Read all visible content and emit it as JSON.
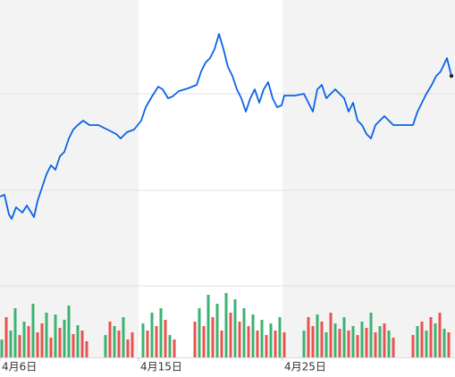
{
  "chart_data": {
    "type": "line",
    "color": "#0a63e6",
    "xlim": [
      0,
      509
    ],
    "ylim": [
      0,
      320
    ],
    "xticks": [
      {
        "value": 0,
        "label": "4月6日"
      },
      {
        "value": 155,
        "label": "4月15日"
      },
      {
        "value": 316,
        "label": "4月25日"
      }
    ],
    "x": [
      0,
      5,
      10,
      13,
      18,
      25,
      30,
      38,
      42,
      47,
      52,
      57,
      62,
      67,
      72,
      77,
      82,
      87,
      93,
      100,
      110,
      120,
      130,
      135,
      142,
      150,
      158,
      163,
      170,
      177,
      182,
      188,
      193,
      200,
      210,
      220,
      225,
      230,
      235,
      240,
      245,
      250,
      255,
      260,
      265,
      270,
      275,
      280,
      285,
      290,
      295,
      300,
      305,
      310,
      315,
      318,
      330,
      340,
      345,
      350,
      355,
      360,
      365,
      370,
      375,
      380,
      385,
      390,
      395,
      400,
      405,
      410,
      415,
      420,
      425,
      430,
      435,
      440,
      450,
      462,
      467,
      472,
      477,
      483,
      488,
      493,
      500,
      505
    ],
    "values": [
      100,
      102,
      80,
      75,
      88,
      82,
      90,
      77,
      95,
      110,
      125,
      135,
      130,
      145,
      150,
      165,
      175,
      180,
      185,
      180,
      180,
      175,
      170,
      165,
      172,
      175,
      185,
      200,
      212,
      223,
      220,
      210,
      212,
      218,
      221,
      225,
      240,
      250,
      255,
      265,
      282,
      265,
      245,
      235,
      220,
      210,
      195,
      210,
      220,
      205,
      220,
      228,
      210,
      200,
      202,
      213,
      213,
      215,
      205,
      195,
      220,
      225,
      210,
      215,
      220,
      215,
      210,
      195,
      205,
      185,
      180,
      170,
      165,
      180,
      185,
      190,
      185,
      180,
      180,
      180,
      195,
      205,
      215,
      225,
      235,
      240,
      255,
      235
    ],
    "volume": {
      "ylim": [
        0,
        80
      ],
      "x": [
        2,
        7,
        12,
        17,
        22,
        27,
        32,
        37,
        42,
        47,
        52,
        57,
        62,
        67,
        72,
        77,
        82,
        87,
        92,
        97,
        118,
        123,
        128,
        133,
        138,
        143,
        148,
        160,
        165,
        170,
        175,
        180,
        185,
        190,
        195,
        218,
        223,
        228,
        233,
        238,
        243,
        248,
        253,
        258,
        263,
        268,
        273,
        278,
        283,
        288,
        293,
        298,
        303,
        308,
        313,
        318,
        340,
        345,
        350,
        355,
        360,
        365,
        370,
        375,
        380,
        385,
        390,
        395,
        400,
        405,
        410,
        415,
        420,
        425,
        430,
        435,
        440,
        462,
        467,
        472,
        477,
        482,
        487,
        492,
        497,
        502
      ],
      "values": [
        20,
        45,
        30,
        55,
        25,
        40,
        35,
        60,
        28,
        38,
        50,
        22,
        48,
        33,
        42,
        58,
        26,
        36,
        30,
        18,
        25,
        40,
        35,
        30,
        45,
        20,
        28,
        38,
        30,
        50,
        35,
        55,
        42,
        25,
        20,
        40,
        55,
        35,
        70,
        45,
        60,
        30,
        72,
        50,
        65,
        40,
        55,
        35,
        48,
        30,
        42,
        25,
        38,
        30,
        45,
        28,
        30,
        45,
        35,
        48,
        40,
        28,
        50,
        38,
        32,
        45,
        30,
        35,
        25,
        40,
        33,
        50,
        28,
        35,
        38,
        30,
        22,
        25,
        35,
        40,
        30,
        45,
        38,
        50,
        32,
        28
      ],
      "colors": [
        "#3cb371",
        "#e8534f",
        "#3cb371",
        "#3cb371",
        "#e8534f",
        "#3cb371",
        "#e8534f",
        "#3cb371",
        "#e8534f",
        "#e8534f",
        "#3cb371",
        "#e8534f",
        "#3cb371",
        "#e8534f",
        "#3cb371",
        "#3cb371",
        "#e8534f",
        "#3cb371",
        "#e8534f",
        "#e8534f",
        "#3cb371",
        "#e8534f",
        "#3cb371",
        "#e8534f",
        "#3cb371",
        "#e8534f",
        "#e8534f",
        "#3cb371",
        "#e8534f",
        "#3cb371",
        "#e8534f",
        "#3cb371",
        "#e8534f",
        "#3cb371",
        "#e8534f",
        "#e8534f",
        "#3cb371",
        "#e8534f",
        "#3cb371",
        "#e8534f",
        "#3cb371",
        "#e8534f",
        "#3cb371",
        "#e8534f",
        "#3cb371",
        "#e8534f",
        "#3cb371",
        "#e8534f",
        "#3cb371",
        "#e8534f",
        "#3cb371",
        "#e8534f",
        "#3cb371",
        "#e8534f",
        "#3cb371",
        "#e8534f",
        "#3cb371",
        "#e8534f",
        "#e8534f",
        "#3cb371",
        "#e8534f",
        "#3cb371",
        "#e8534f",
        "#3cb371",
        "#e8534f",
        "#3cb371",
        "#e8534f",
        "#3cb371",
        "#e8534f",
        "#3cb371",
        "#e8534f",
        "#3cb371",
        "#e8534f",
        "#3cb371",
        "#e8534f",
        "#3cb371",
        "#e8534f",
        "#e8534f",
        "#3cb371",
        "#e8534f",
        "#3cb371",
        "#e8534f",
        "#3cb371",
        "#e8534f",
        "#3cb371",
        "#e8534f"
      ]
    }
  }
}
